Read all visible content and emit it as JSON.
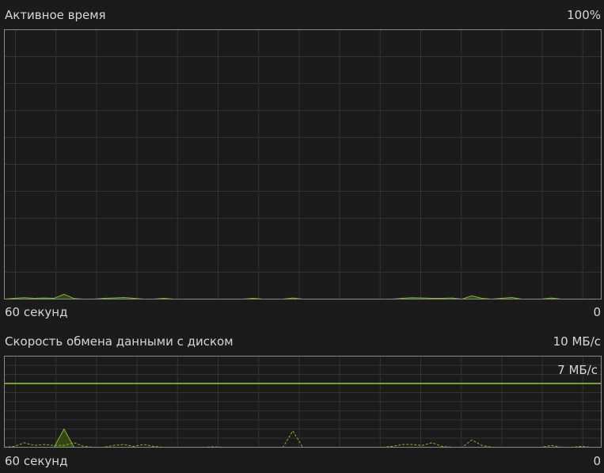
{
  "active_time": {
    "title": "Активное время",
    "max_label": "100%",
    "time_label": "60 секунд",
    "min_label": "0"
  },
  "transfer_rate": {
    "title": "Скорость обмена данными с диском",
    "max_label": "10 МБ/с",
    "marker_label": "7 МБ/с",
    "time_label": "60 секунд",
    "min_label": "0"
  },
  "colors": {
    "line": "#7fba1e",
    "fill": "#394a16",
    "grid": "#333333",
    "border": "#8a8a8a",
    "background": "#1b1b1b"
  },
  "chart_data": [
    {
      "type": "area",
      "xlim": [
        60,
        0
      ],
      "ylim": [
        0,
        100
      ],
      "unit": "%",
      "grid": true,
      "series": [
        {
          "values": [
            0,
            0.3,
            0.5,
            0.3,
            0.4,
            0.3,
            1.8,
            0.2,
            0,
            0,
            0.3,
            0.4,
            0.6,
            0.3,
            0,
            0,
            0.3,
            0,
            0,
            0,
            0,
            0,
            0,
            0,
            0,
            0.3,
            0,
            0,
            0,
            0.4,
            0,
            0,
            0,
            0,
            0,
            0,
            0,
            0,
            0,
            0,
            0.3,
            0.5,
            0.4,
            0.3,
            0.3,
            0.4,
            0,
            1.2,
            0.3,
            0,
            0.3,
            0.6,
            0,
            0,
            0,
            0.4,
            0,
            0,
            0,
            0,
            0
          ]
        }
      ]
    },
    {
      "type": "area",
      "xlim": [
        60,
        0
      ],
      "ylim": [
        0,
        10
      ],
      "unit": "МБ/с",
      "grid": true,
      "reference_line": 7,
      "series": [
        {
          "style": "solid-fill",
          "values": [
            0,
            0,
            0,
            0,
            0,
            0,
            2.0,
            0,
            0,
            0,
            0,
            0,
            0,
            0,
            0,
            0,
            0,
            0,
            0,
            0,
            0,
            0,
            0,
            0,
            0,
            0,
            0,
            0,
            0,
            0,
            0,
            0,
            0,
            0,
            0,
            0,
            0,
            0,
            0,
            0,
            0,
            0,
            0,
            0,
            0,
            0,
            0,
            0,
            0,
            0,
            0,
            0,
            0,
            0,
            0,
            0,
            0,
            0,
            0,
            0,
            0
          ]
        },
        {
          "style": "dashed",
          "values": [
            0,
            0.1,
            0.5,
            0.2,
            0.3,
            0.2,
            0.2,
            0.5,
            0.1,
            0,
            0,
            0.2,
            0.3,
            0.1,
            0.3,
            0.1,
            0,
            0,
            0,
            0,
            0,
            0.05,
            0,
            0,
            0,
            0,
            0,
            0,
            0,
            1.8,
            0,
            0,
            0,
            0,
            0,
            0,
            0,
            0,
            0,
            0.1,
            0.3,
            0.3,
            0.2,
            0.5,
            0.1,
            0,
            0,
            0.8,
            0.2,
            0,
            0,
            0,
            0,
            0,
            0,
            0.2,
            0,
            0,
            0.1,
            0,
            0
          ]
        }
      ]
    }
  ]
}
